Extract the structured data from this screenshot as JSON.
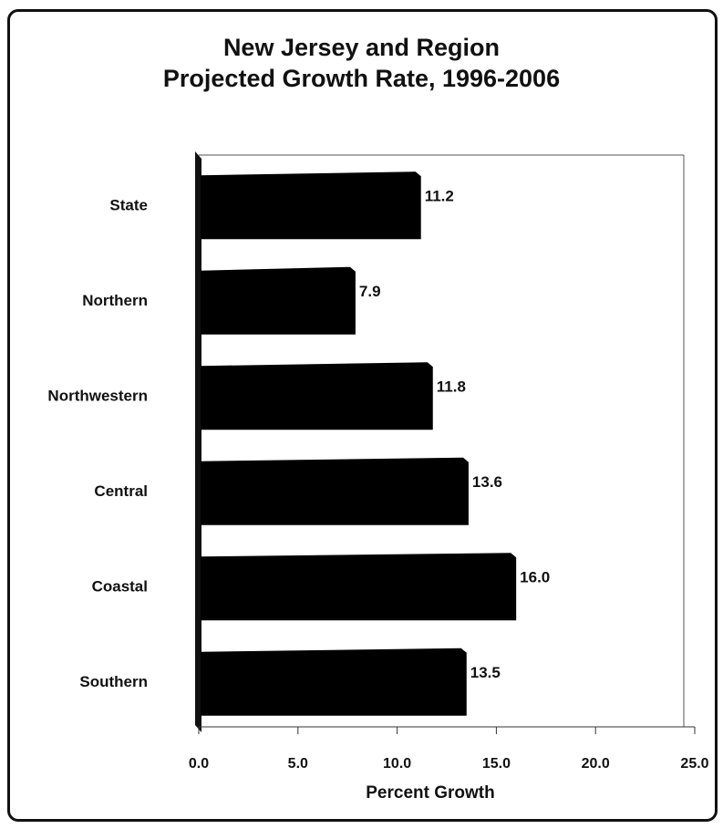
{
  "chart_data": {
    "type": "bar",
    "orientation": "horizontal",
    "title": "New Jersey and Region\nProjected Growth Rate, 1996-2006",
    "title_lines": [
      "New Jersey and Region",
      "Projected Growth Rate, 1996-2006"
    ],
    "categories": [
      "State",
      "Northern",
      "Northwestern",
      "Central",
      "Coastal",
      "Southern"
    ],
    "values": [
      11.2,
      7.9,
      11.8,
      13.6,
      16.0,
      13.5
    ],
    "value_labels": [
      "11.2",
      "7.9",
      "11.8",
      "13.6",
      "16.0",
      "13.5"
    ],
    "xlabel": "Percent Growth",
    "ylabel": "",
    "xlim": [
      0,
      25
    ],
    "xticks": [
      0,
      5,
      10,
      15,
      20,
      25
    ],
    "xtick_labels": [
      "0.0",
      "5.0",
      "10.0",
      "15.0",
      "20.0",
      "25.0"
    ],
    "grid": false,
    "legend": "none",
    "bar_color": "#000000"
  }
}
